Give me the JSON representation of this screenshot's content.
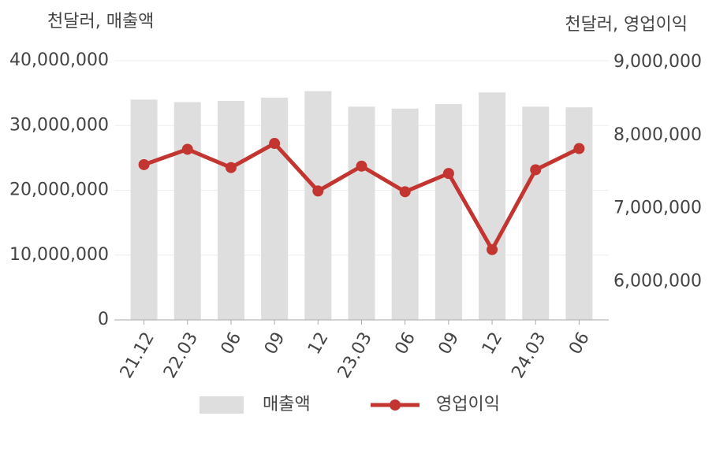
{
  "chart_data": {
    "type": "bar-line",
    "y_label": "천달러, 매출액",
    "y2_label": "천달러, 영업이익",
    "categories": [
      "21.12",
      "22.03",
      "06",
      "09",
      "12",
      "23.03",
      "06",
      "09",
      "12",
      "24.03",
      "06"
    ],
    "series": [
      {
        "name": "매출액",
        "type": "bar",
        "color": "#dedede",
        "values": [
          34000000,
          33600000,
          33800000,
          34300000,
          35300000,
          32900000,
          32600000,
          33300000,
          35100000,
          32900000,
          32800000
        ]
      },
      {
        "name": "영업이익",
        "type": "line",
        "axis": "y2",
        "color": "#c23531",
        "values": [
          7600000,
          7810000,
          7560000,
          7890000,
          7240000,
          7580000,
          7230000,
          7480000,
          6440000,
          7530000,
          7820000
        ]
      }
    ],
    "ylim": [
      0,
      40000000
    ],
    "yticks": [
      0,
      {
        "value": 10000000,
        "label": "10,000,000"
      },
      {
        "value": 20000000,
        "label": "20,000,000"
      },
      {
        "value": 30000000,
        "label": "30,000,000"
      },
      {
        "value": 40000000,
        "label": "40,000,000"
      }
    ],
    "y2lim": [
      5480000,
      9020000
    ],
    "y2ticks": [
      {
        "value": 6000000,
        "label": "6,000,000"
      },
      {
        "value": 7000000,
        "label": "7,000,000"
      },
      {
        "value": 8000000,
        "label": "8,000,000"
      },
      {
        "value": 9000000,
        "label": "9,000,000"
      }
    ],
    "grid": true
  }
}
